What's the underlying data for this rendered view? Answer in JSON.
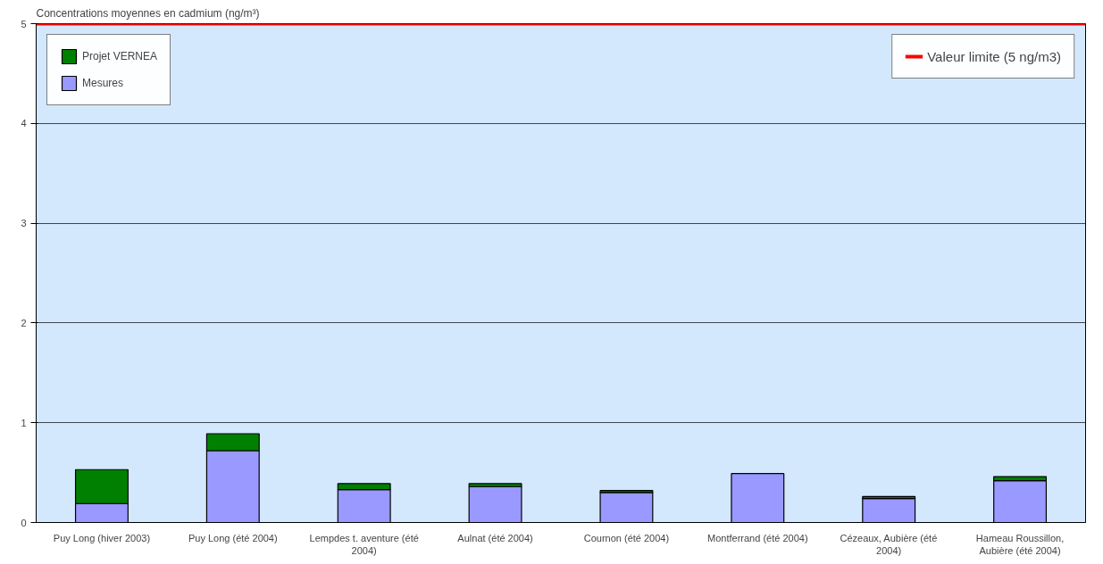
{
  "chart_data": {
    "type": "bar",
    "stacked": true,
    "ylabel": "Concentrations moyennes en cadmium (ng/m³)",
    "categories": [
      "Puy Long (hiver 2003)",
      "Puy Long (été 2004)",
      "Lempdes t. aventure (été 2004)",
      "Aulnat (été 2004)",
      "Cournon (été 2004)",
      "Montferrand (été 2004)",
      "Cézeaux, Aubière (été 2004)",
      "Hameau Roussillon, Aubière (été 2004)"
    ],
    "series": [
      {
        "name": "Mesures",
        "color": "#9999ff",
        "values": [
          0.19,
          0.72,
          0.33,
          0.36,
          0.3,
          0.49,
          0.24,
          0.42
        ]
      },
      {
        "name": "Projet VERNEA",
        "color": "#008000",
        "values": [
          0.34,
          0.17,
          0.06,
          0.03,
          0.02,
          null,
          0.02,
          0.04
        ]
      }
    ],
    "ylim": [
      0,
      5
    ],
    "yticks": [
      0,
      1,
      2,
      3,
      4,
      5
    ],
    "grid": "y",
    "legend": "top left",
    "ref_lines": [
      {
        "axis": "y",
        "value": 5,
        "label": "Valeur limite (5 ng/m3)",
        "color": "#ff0000"
      }
    ]
  }
}
